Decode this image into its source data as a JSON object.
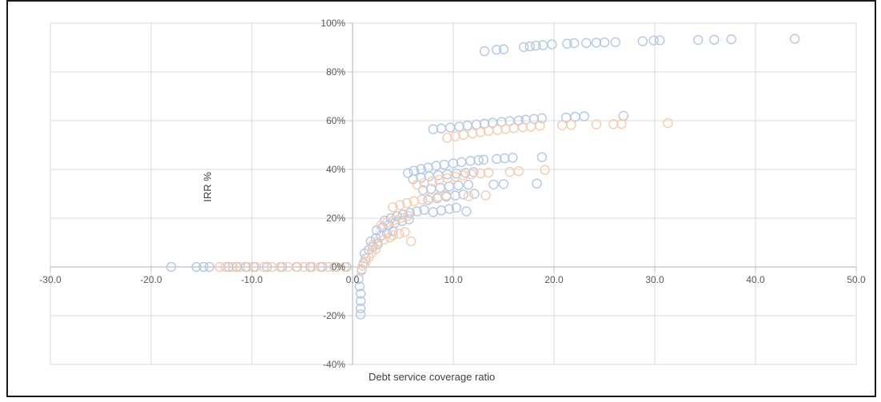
{
  "chart_data": {
    "type": "scatter",
    "title": "",
    "xlabel": "Debt service coverage ratio",
    "ylabel": "IRR %",
    "xlim": [
      -30,
      50
    ],
    "ylim": [
      -40,
      100
    ],
    "x_ticks": [
      -30,
      -20,
      -10,
      0,
      10,
      20,
      30,
      40,
      50
    ],
    "x_tick_labels": [
      "-30.0",
      "-20.0",
      "-10.0",
      "0.0",
      "10.0",
      "20.0",
      "30.0",
      "40.0",
      "50.0"
    ],
    "y_ticks": [
      -40,
      -20,
      0,
      20,
      40,
      60,
      80,
      100
    ],
    "y_tick_labels": [
      "-40%",
      "-20%",
      "0%",
      "20%",
      "40%",
      "60%",
      "80%",
      "100%"
    ],
    "grid": true,
    "legend": "none",
    "series": [
      {
        "color": "#b4c7e7",
        "points": [
          [
            -18.0,
            0
          ],
          [
            -15.5,
            0
          ],
          [
            -14.8,
            0
          ],
          [
            -14.2,
            0
          ],
          [
            -12.3,
            0
          ],
          [
            -11.5,
            0
          ],
          [
            -10.6,
            0
          ],
          [
            -9.8,
            0
          ],
          [
            -8.5,
            0
          ],
          [
            -7.0,
            0
          ],
          [
            -5.5,
            0
          ],
          [
            -4.2,
            0
          ],
          [
            -3.0,
            0
          ],
          [
            -1.8,
            0
          ],
          [
            -0.6,
            0
          ],
          [
            13.1,
            88.5
          ],
          [
            14.3,
            89.1
          ],
          [
            15.0,
            89.3
          ],
          [
            17.0,
            90.2
          ],
          [
            17.6,
            90.5
          ],
          [
            18.2,
            90.8
          ],
          [
            18.9,
            91.0
          ],
          [
            19.8,
            91.3
          ],
          [
            21.3,
            91.6
          ],
          [
            22.0,
            91.8
          ],
          [
            23.2,
            91.9
          ],
          [
            24.2,
            92.0
          ],
          [
            25.0,
            92.1
          ],
          [
            26.1,
            92.2
          ],
          [
            28.8,
            92.6
          ],
          [
            29.9,
            92.9
          ],
          [
            30.5,
            93.0
          ],
          [
            34.3,
            93.1
          ],
          [
            35.9,
            93.2
          ],
          [
            37.6,
            93.4
          ],
          [
            43.9,
            93.6
          ],
          [
            8.0,
            56.5
          ],
          [
            8.8,
            56.8
          ],
          [
            9.7,
            57.2
          ],
          [
            10.6,
            57.6
          ],
          [
            11.4,
            58.0
          ],
          [
            12.3,
            58.4
          ],
          [
            13.1,
            58.8
          ],
          [
            13.9,
            59.2
          ],
          [
            14.8,
            59.5
          ],
          [
            15.6,
            59.8
          ],
          [
            16.5,
            60.1
          ],
          [
            17.2,
            60.4
          ],
          [
            18.0,
            60.7
          ],
          [
            18.8,
            61.0
          ],
          [
            21.2,
            61.3
          ],
          [
            22.1,
            61.6
          ],
          [
            23.0,
            61.8
          ],
          [
            26.9,
            62.0
          ],
          [
            5.5,
            38.5
          ],
          [
            6.1,
            39.5
          ],
          [
            6.8,
            40.2
          ],
          [
            7.5,
            40.8
          ],
          [
            8.3,
            41.5
          ],
          [
            9.1,
            42.0
          ],
          [
            10.0,
            42.5
          ],
          [
            10.8,
            43.0
          ],
          [
            11.7,
            43.5
          ],
          [
            12.5,
            43.8
          ],
          [
            13.0,
            44.0
          ],
          [
            14.3,
            44.3
          ],
          [
            15.1,
            44.6
          ],
          [
            15.9,
            44.8
          ],
          [
            18.8,
            45.0
          ],
          [
            6.0,
            36.0
          ],
          [
            6.8,
            36.6
          ],
          [
            7.6,
            37.2
          ],
          [
            8.5,
            37.6
          ],
          [
            9.4,
            38.0
          ],
          [
            10.3,
            38.3
          ],
          [
            11.2,
            38.6
          ],
          [
            12.0,
            38.9
          ],
          [
            7.0,
            31.5
          ],
          [
            7.8,
            32.0
          ],
          [
            8.7,
            32.5
          ],
          [
            9.6,
            33.0
          ],
          [
            10.5,
            33.4
          ],
          [
            11.5,
            33.7
          ],
          [
            14.0,
            33.8
          ],
          [
            15.0,
            34.0
          ],
          [
            18.3,
            34.2
          ],
          [
            7.5,
            27.5
          ],
          [
            8.4,
            28.2
          ],
          [
            9.3,
            28.8
          ],
          [
            10.2,
            29.3
          ],
          [
            11.0,
            29.7
          ],
          [
            12.1,
            30.0
          ],
          [
            8.0,
            22.5
          ],
          [
            8.8,
            23.2
          ],
          [
            9.6,
            23.8
          ],
          [
            10.3,
            24.3
          ],
          [
            11.3,
            22.8
          ],
          [
            3.2,
            19.0
          ],
          [
            3.8,
            20.0
          ],
          [
            4.4,
            20.8
          ],
          [
            5.0,
            21.5
          ],
          [
            5.7,
            22.2
          ],
          [
            6.4,
            22.8
          ],
          [
            7.1,
            23.4
          ],
          [
            2.4,
            15.0
          ],
          [
            3.0,
            16.2
          ],
          [
            3.6,
            17.2
          ],
          [
            4.2,
            18.0
          ],
          [
            4.9,
            18.8
          ],
          [
            5.6,
            19.5
          ],
          [
            1.8,
            10.5
          ],
          [
            2.3,
            11.8
          ],
          [
            2.8,
            12.8
          ],
          [
            3.4,
            13.8
          ],
          [
            4.0,
            14.6
          ],
          [
            1.2,
            5.5
          ],
          [
            1.6,
            7.0
          ],
          [
            2.0,
            8.2
          ],
          [
            2.5,
            9.4
          ],
          [
            0.9,
            -1.0
          ],
          [
            1.1,
            1.5
          ],
          [
            1.3,
            3.5
          ],
          [
            0.6,
            -5.0
          ],
          [
            0.7,
            -8.0
          ],
          [
            0.8,
            -11.0
          ],
          [
            0.8,
            -14.0
          ],
          [
            0.8,
            -17.0
          ],
          [
            0.8,
            -19.5
          ]
        ]
      },
      {
        "color": "#f8cbad",
        "points": [
          [
            -13.2,
            0
          ],
          [
            -12.6,
            0
          ],
          [
            -11.9,
            0
          ],
          [
            -11.2,
            0
          ],
          [
            -10.4,
            0
          ],
          [
            -9.6,
            0
          ],
          [
            -8.8,
            0
          ],
          [
            -8.0,
            0
          ],
          [
            -7.2,
            0
          ],
          [
            -6.4,
            0
          ],
          [
            -5.6,
            0
          ],
          [
            -4.8,
            0
          ],
          [
            -4.0,
            0
          ],
          [
            -3.2,
            0
          ],
          [
            -2.4,
            0
          ],
          [
            -1.6,
            0
          ],
          [
            -0.8,
            0
          ],
          [
            9.4,
            53.0
          ],
          [
            10.2,
            53.6
          ],
          [
            11.0,
            54.2
          ],
          [
            11.9,
            54.8
          ],
          [
            12.7,
            55.3
          ],
          [
            13.5,
            55.8
          ],
          [
            14.4,
            56.2
          ],
          [
            15.2,
            56.6
          ],
          [
            16.0,
            57.0
          ],
          [
            16.9,
            57.3
          ],
          [
            17.7,
            57.6
          ],
          [
            18.6,
            57.9
          ],
          [
            20.8,
            58.1
          ],
          [
            21.7,
            58.3
          ],
          [
            24.2,
            58.5
          ],
          [
            25.9,
            58.6
          ],
          [
            26.7,
            58.7
          ],
          [
            31.3,
            59.0
          ],
          [
            6.4,
            33.8
          ],
          [
            7.1,
            34.5
          ],
          [
            7.9,
            35.2
          ],
          [
            8.6,
            35.8
          ],
          [
            9.4,
            36.4
          ],
          [
            10.2,
            37.0
          ],
          [
            11.0,
            37.5
          ],
          [
            11.8,
            38.0
          ],
          [
            12.7,
            38.4
          ],
          [
            13.5,
            38.7
          ],
          [
            15.6,
            39.0
          ],
          [
            16.5,
            39.3
          ],
          [
            19.1,
            39.8
          ],
          [
            4.0,
            24.5
          ],
          [
            4.7,
            25.4
          ],
          [
            5.4,
            26.2
          ],
          [
            6.1,
            27.0
          ],
          [
            6.9,
            27.7
          ],
          [
            7.7,
            28.3
          ],
          [
            8.5,
            28.8
          ],
          [
            9.3,
            29.3
          ],
          [
            11.5,
            29.0
          ],
          [
            13.2,
            29.4
          ],
          [
            2.8,
            17.0
          ],
          [
            3.4,
            18.2
          ],
          [
            4.1,
            19.2
          ],
          [
            4.8,
            20.1
          ],
          [
            5.5,
            21.0
          ],
          [
            4.0,
            13.0
          ],
          [
            4.6,
            13.7
          ],
          [
            5.2,
            14.3
          ],
          [
            5.8,
            10.5
          ],
          [
            2.0,
            9.0
          ],
          [
            2.5,
            10.2
          ],
          [
            3.1,
            11.2
          ],
          [
            3.7,
            12.1
          ],
          [
            1.3,
            2.0
          ],
          [
            1.6,
            4.0
          ],
          [
            1.9,
            5.8
          ],
          [
            2.3,
            7.4
          ],
          [
            0.9,
            -1.5
          ],
          [
            1.0,
            0.5
          ]
        ]
      }
    ]
  }
}
